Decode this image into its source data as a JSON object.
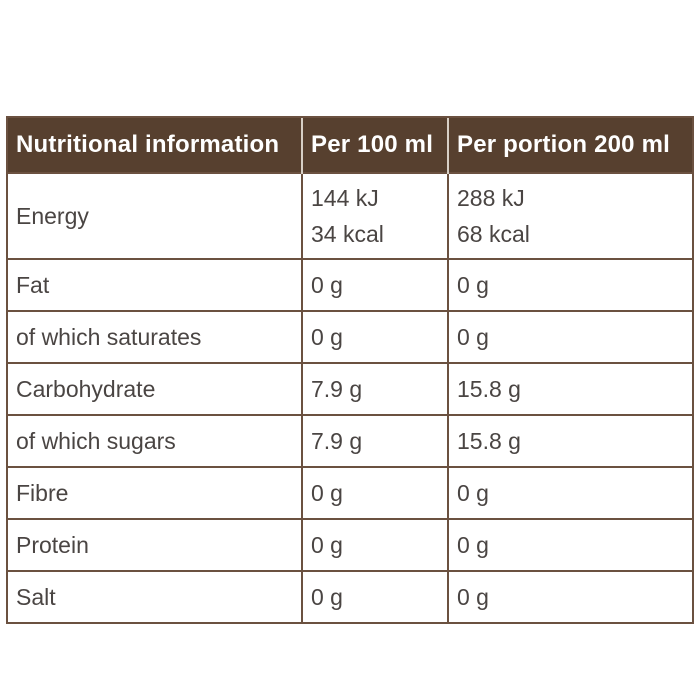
{
  "page": {
    "background": "#FFFFFF"
  },
  "colors": {
    "header_bg": "#57402F",
    "header_text": "#FFFFFF",
    "header_divider": "#D8D0C6",
    "grid_border": "#6B5140",
    "body_text": "#4A4543"
  },
  "table": {
    "columns": [
      {
        "label": "Nutritional information"
      },
      {
        "label": "Per 100 ml"
      },
      {
        "label": "Per portion 200 ml"
      }
    ],
    "rows": [
      {
        "label": "Energy",
        "per_100ml": [
          "144 kJ",
          "34 kcal"
        ],
        "per_portion": [
          "288 kJ",
          "68 kcal"
        ]
      },
      {
        "label": "Fat",
        "per_100ml": [
          "0 g"
        ],
        "per_portion": [
          "0 g"
        ]
      },
      {
        "label": "of which saturates",
        "per_100ml": [
          "0 g"
        ],
        "per_portion": [
          "0 g"
        ]
      },
      {
        "label": "Carbohydrate",
        "per_100ml": [
          "7.9 g"
        ],
        "per_portion": [
          "15.8 g"
        ]
      },
      {
        "label": "of which sugars",
        "per_100ml": [
          "7.9 g"
        ],
        "per_portion": [
          "15.8 g"
        ]
      },
      {
        "label": "Fibre",
        "per_100ml": [
          "0 g"
        ],
        "per_portion": [
          "0 g"
        ]
      },
      {
        "label": "Protein",
        "per_100ml": [
          "0 g"
        ],
        "per_portion": [
          "0 g"
        ]
      },
      {
        "label": "Salt",
        "per_100ml": [
          "0 g"
        ],
        "per_portion": [
          "0 g"
        ]
      }
    ]
  }
}
